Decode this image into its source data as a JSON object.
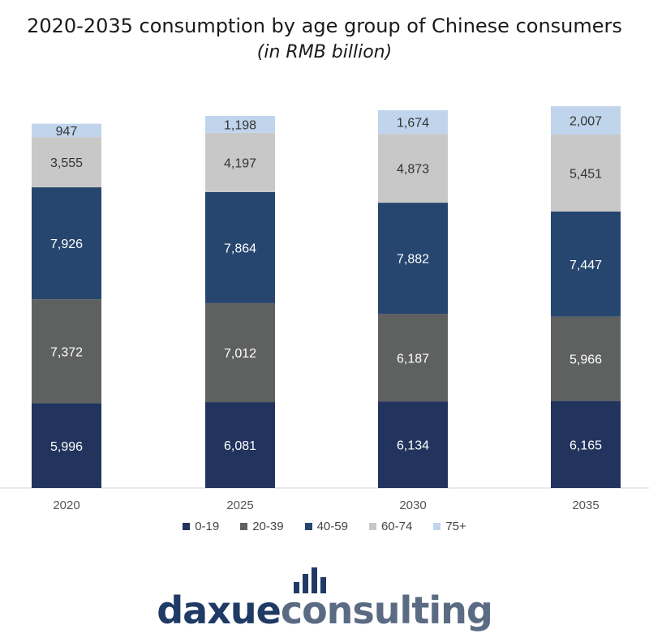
{
  "chart_data": {
    "type": "bar",
    "stacked": true,
    "title": "2020-2035 consumption by age group of Chinese consumers",
    "subtitle": "(in RMB billion)",
    "categories": [
      "2020",
      "2025",
      "2030",
      "2035"
    ],
    "series": [
      {
        "name": "0-19",
        "color": "#22345e",
        "values": [
          5996,
          6081,
          6134,
          6165
        ]
      },
      {
        "name": "20-39",
        "color": "#5f6060",
        "values": [
          7372,
          7012,
          6187,
          5966
        ]
      },
      {
        "name": "40-59",
        "color": "#27466f",
        "values": [
          7926,
          7864,
          7882,
          7447
        ]
      },
      {
        "name": "60-74",
        "color": "#c8c8c8",
        "values": [
          3555,
          4197,
          4873,
          5451
        ]
      },
      {
        "name": "75+",
        "color": "#c0d5ec",
        "values": [
          947,
          1198,
          1674,
          2007
        ]
      }
    ],
    "value_labels": [
      [
        "5,996",
        "7,372",
        "7,926",
        "3,555",
        "947"
      ],
      [
        "6,081",
        "7,012",
        "7,864",
        "4,197",
        "1,198"
      ],
      [
        "6,134",
        "6,187",
        "7,882",
        "4,873",
        "1,674"
      ],
      [
        "6,165",
        "5,966",
        "7,447",
        "5,451",
        "2,007"
      ]
    ],
    "legend_position": "bottom",
    "grid": false
  },
  "logo": {
    "text_part1": "daxue",
    "text_part2": "consulting",
    "icon": "bar-chart-icon",
    "color": "#1f3a64"
  }
}
